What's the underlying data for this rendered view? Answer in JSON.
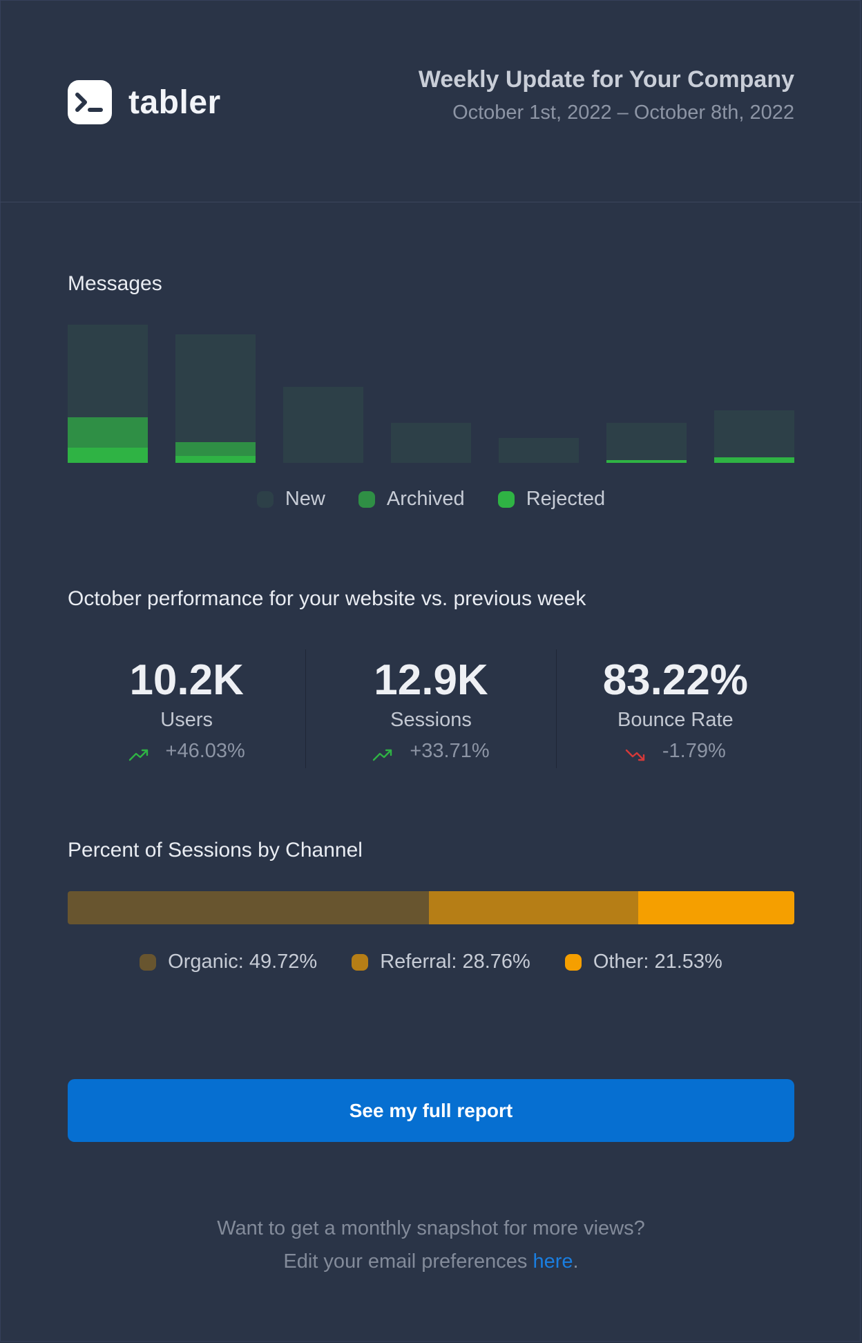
{
  "brand": {
    "logo_icon": "terminal-prompt-icon",
    "name": "tabler"
  },
  "header": {
    "title": "Weekly Update for Your Company",
    "date_range": "October 1st, 2022 – October 8th, 2022"
  },
  "messages": {
    "title": "Messages",
    "legend": [
      {
        "name": "New",
        "color": "#2d4048"
      },
      {
        "name": "Archived",
        "color": "#2f8f45"
      },
      {
        "name": "Rejected",
        "color": "#2fb344"
      }
    ]
  },
  "chart_data": {
    "type": "bar",
    "stacked": true,
    "title": "Messages",
    "categories": [
      "",
      "",
      "",
      "",
      "",
      "",
      ""
    ],
    "series": [
      {
        "name": "Rejected",
        "color": "#2fb344",
        "values": [
          11,
          5,
          0,
          0,
          0,
          2,
          4
        ]
      },
      {
        "name": "Archived",
        "color": "#2f8f45",
        "values": [
          22,
          10,
          0,
          0,
          0,
          0,
          0
        ]
      },
      {
        "name": "New",
        "color": "#2d4048",
        "values": [
          67,
          78,
          55,
          29,
          18,
          27,
          34
        ]
      }
    ],
    "ylim": [
      0,
      100
    ],
    "grid": false,
    "legend_position": "bottom-center"
  },
  "performance": {
    "title": "October performance for your website vs. previous week",
    "stats": [
      {
        "value": "10.2K",
        "label": "Users",
        "change": "+46.03%",
        "trend": "up",
        "trend_icon": "trending-up-icon",
        "trend_color": "#2fb344"
      },
      {
        "value": "12.9K",
        "label": "Sessions",
        "change": "+33.71%",
        "trend": "up",
        "trend_icon": "trending-up-icon",
        "trend_color": "#2fb344"
      },
      {
        "value": "83.22%",
        "label": "Bounce Rate",
        "change": "-1.79%",
        "trend": "down",
        "trend_icon": "trending-down-icon",
        "trend_color": "#d63939"
      }
    ]
  },
  "channels": {
    "title": "Percent of Sessions by Channel",
    "segments": [
      {
        "label": "Organic: 49.72%",
        "percent": 49.72,
        "color": "#68552f"
      },
      {
        "label": "Referral: 28.76%",
        "percent": 28.76,
        "color": "#b67e16"
      },
      {
        "label": "Other: 21.53%",
        "percent": 21.53,
        "color": "#f59f00"
      }
    ]
  },
  "cta": {
    "label": "See my full report"
  },
  "footer": {
    "line1": "Want to get a monthly snapshot for more views?",
    "line2_prefix": "Edit your email preferences ",
    "link_text": "here",
    "line2_suffix": "."
  }
}
